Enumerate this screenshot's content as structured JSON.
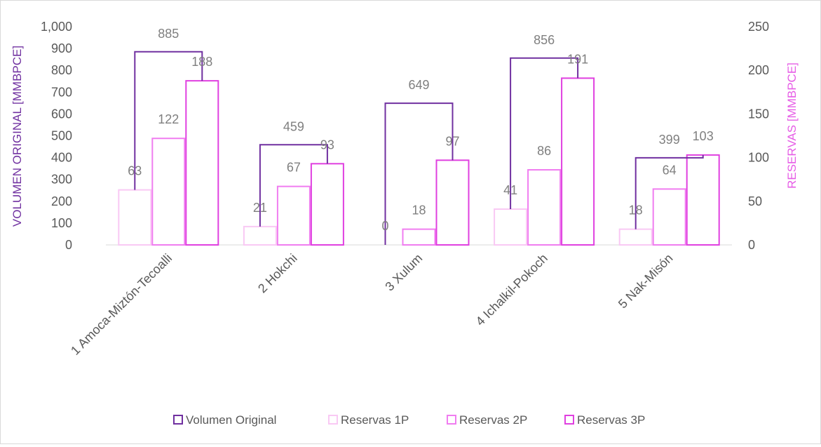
{
  "chart_data": {
    "type": "bar",
    "categories": [
      "1 Amoca-Miztón-Tecoalli",
      "2 Hokchi",
      "3 Xulum",
      "4 Ichalkil-Pokoch",
      "5 Nak-Misón"
    ],
    "y_left": {
      "label": "VOLUMEN ORIGINAL [MMBPCE]",
      "range": [
        0,
        1000
      ],
      "ticks": [
        "0",
        "100",
        "200",
        "300",
        "400",
        "500",
        "600",
        "700",
        "800",
        "900",
        "1,000"
      ]
    },
    "y_right": {
      "label": "RESERVAS [MMBPCE]",
      "range": [
        0,
        250
      ],
      "ticks": [
        "0",
        "50",
        "100",
        "150",
        "200",
        "250"
      ]
    },
    "series": [
      {
        "name": "Volumen Original",
        "axis": "left",
        "values": [
          885,
          459,
          649,
          856,
          399
        ],
        "labels": [
          "885",
          "459",
          "649",
          "856",
          "399"
        ],
        "color": "#7030a0"
      },
      {
        "name": "Reservas 1P",
        "axis": "right",
        "values": [
          63,
          21,
          0,
          41,
          18
        ],
        "labels": [
          "63",
          "21",
          "0",
          "41",
          "18"
        ],
        "color": "#f9c9f4"
      },
      {
        "name": "Reservas 2P",
        "axis": "right",
        "values": [
          122,
          67,
          18,
          86,
          64
        ],
        "labels": [
          "122",
          "67",
          "18",
          "86",
          "64"
        ],
        "color": "#f07df0"
      },
      {
        "name": "Reservas 3P",
        "axis": "right",
        "values": [
          188,
          93,
          97,
          191,
          103
        ],
        "labels": [
          "188",
          "93",
          "97",
          "191",
          "103"
        ],
        "color": "#e040e0"
      }
    ],
    "grid": false,
    "legend_position": "bottom"
  }
}
